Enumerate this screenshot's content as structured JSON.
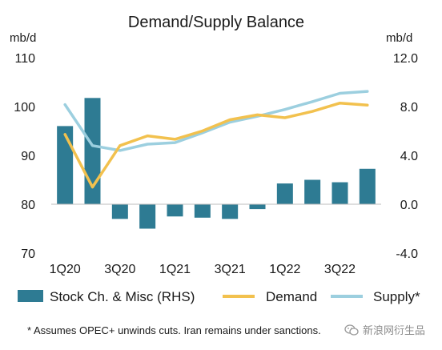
{
  "chart_data": {
    "type": "bar+line",
    "title": "Demand/Supply Balance",
    "left_axis": {
      "unit_label": "mb/d",
      "range": [
        70,
        110
      ],
      "ticks": [
        "70",
        "80",
        "90",
        "100",
        "110"
      ]
    },
    "right_axis": {
      "unit_label": "mb/d",
      "range": [
        -4.0,
        12.0
      ],
      "ticks": [
        "-4.0",
        "0.0",
        "4.0",
        "8.0",
        "12.0"
      ]
    },
    "categories": [
      "1Q20",
      "2Q20",
      "3Q20",
      "4Q20",
      "1Q21",
      "2Q21",
      "3Q21",
      "4Q21",
      "1Q22",
      "2Q22",
      "3Q22",
      "4Q22"
    ],
    "x_tick_labels": [
      "1Q20",
      "",
      "3Q20",
      "",
      "1Q21",
      "",
      "3Q21",
      "",
      "1Q22",
      "",
      "3Q22",
      ""
    ],
    "series": [
      {
        "name": "Stock Ch. & Misc (RHS)",
        "type": "bar",
        "axis": "right",
        "color": "#2e7b93",
        "values": [
          6.4,
          8.7,
          -1.2,
          -2.0,
          -1.0,
          -1.1,
          -1.2,
          -0.4,
          1.7,
          2.0,
          1.8,
          2.9
        ]
      },
      {
        "name": "Demand",
        "type": "line",
        "axis": "left",
        "color": "#f2c14e",
        "values": [
          94.3,
          83.5,
          92.0,
          94.0,
          93.3,
          95.0,
          97.3,
          98.3,
          97.7,
          99.0,
          100.7,
          100.3
        ]
      },
      {
        "name": "Supply*",
        "type": "line",
        "axis": "left",
        "color": "#9ccfdf",
        "values": [
          100.4,
          92.0,
          91.0,
          92.3,
          92.6,
          94.6,
          96.8,
          98.0,
          99.4,
          101.0,
          102.7,
          103.1
        ]
      }
    ],
    "legend_position": "bottom",
    "grid": false
  },
  "footnote": "* Assumes OPEC+ unwinds cuts. Iran remains under sanctions.",
  "watermark": {
    "text": "新浪网衍生品",
    "icon": "wechat-icon"
  }
}
